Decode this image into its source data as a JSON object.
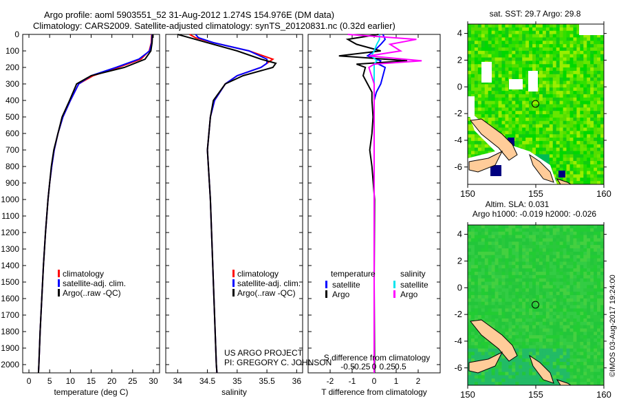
{
  "title_line1": "Argo profile: aoml 5903551_52 31-Aug-2012 1.274S 154.976E (DM data)",
  "title_line2": "Climatology: CARS2009. Satellite-adjusted climatology: synTS_20120831.nc (0.32d earlier)",
  "credit_line1": "US ARGO PROJECT",
  "credit_line2": "PI: GREGORY C. JOHNSON",
  "side_stamp": "©IMOS 03-Aug-2017 19:24:00",
  "colors": {
    "climatology": "#ff0000",
    "satellite": "#0000ff",
    "argo": "#000000",
    "s_satellite": "#00e5ee",
    "s_argo": "#ff00ff",
    "land": "#ffcc99"
  },
  "chart_data": [
    {
      "type": "line",
      "xlabel": "temperature (deg C)",
      "ylabel": "",
      "xlim": [
        -1.5,
        31.5
      ],
      "ylim": [
        2050,
        0
      ],
      "xticks": [
        "0",
        "5",
        "10",
        "15",
        "20",
        "25",
        "30"
      ],
      "yticks": [
        "0",
        "100",
        "200",
        "300",
        "400",
        "500",
        "600",
        "700",
        "800",
        "900",
        "1000",
        "1100",
        "1200",
        "1300",
        "1400",
        "1500",
        "1600",
        "1700",
        "1800",
        "1900",
        "2000"
      ],
      "legend": [
        "climatology",
        "satellite-adj. clim.",
        "Argo(..raw -QC)"
      ],
      "depth": [
        0,
        50,
        100,
        150,
        200,
        250,
        300,
        400,
        500,
        600,
        700,
        800,
        900,
        1000,
        1200,
        1400,
        1600,
        1800,
        2000,
        2050
      ],
      "series": [
        {
          "name": "climatology",
          "values": [
            29.6,
            29.5,
            29.0,
            27.0,
            21.5,
            15.5,
            12.0,
            10.0,
            8.2,
            7.0,
            6.1,
            5.5,
            5.0,
            4.6,
            4.0,
            3.5,
            3.1,
            2.7,
            2.4,
            2.3
          ]
        },
        {
          "name": "satellite-adj. clim.",
          "values": [
            29.7,
            29.6,
            29.1,
            26.5,
            21.0,
            15.0,
            12.0,
            10.0,
            8.2,
            7.0,
            6.1,
            5.5,
            5.0,
            4.6,
            4.0,
            3.5,
            3.1,
            2.7,
            2.4,
            2.3
          ]
        },
        {
          "name": "Argo(..raw -QC)",
          "values": [
            29.8,
            29.7,
            29.4,
            28.0,
            23.0,
            15.0,
            11.5,
            9.8,
            8.0,
            7.0,
            6.0,
            5.4,
            5.0,
            4.6,
            4.0,
            3.5,
            3.1,
            2.7,
            2.4,
            2.3
          ]
        }
      ]
    },
    {
      "type": "line",
      "xlabel": "salinity",
      "xlim": [
        33.8,
        36.1
      ],
      "ylim": [
        2050,
        0
      ],
      "xticks": [
        "34",
        "34.5",
        "35",
        "35.5",
        "36"
      ],
      "legend": [
        "climatology",
        "satellite-adj. clim.",
        "Argo(..raw -QC)"
      ],
      "depth": [
        0,
        20,
        50,
        100,
        150,
        175,
        200,
        250,
        300,
        400,
        500,
        700,
        1000,
        1500,
        2000,
        2050
      ],
      "series": [
        {
          "name": "climatology",
          "values": [
            34.2,
            34.3,
            34.6,
            35.2,
            35.6,
            35.5,
            35.4,
            35.0,
            34.8,
            34.62,
            34.55,
            34.5,
            34.55,
            34.6,
            34.65,
            34.66
          ]
        },
        {
          "name": "satellite-adj. clim.",
          "values": [
            34.3,
            34.35,
            34.6,
            35.2,
            35.5,
            35.5,
            35.4,
            35.0,
            34.8,
            34.62,
            34.55,
            34.5,
            34.55,
            34.6,
            34.65,
            34.66
          ]
        },
        {
          "name": "Argo(..raw -QC)",
          "values": [
            34.0,
            34.2,
            34.5,
            35.0,
            35.4,
            35.65,
            35.6,
            35.1,
            34.8,
            34.6,
            34.55,
            34.5,
            34.55,
            34.6,
            34.65,
            34.66
          ]
        }
      ]
    },
    {
      "type": "line",
      "xlabel": "T difference from climatology",
      "xlabel2": "S difference from climatology",
      "xlim": [
        -3,
        3
      ],
      "xlim2": [
        -1.25,
        1.25
      ],
      "ylim": [
        2050,
        0
      ],
      "xticks": [
        "-2",
        "-1",
        "0",
        "1",
        "2"
      ],
      "xticks2": [
        "-0.5",
        "-0.25",
        "0",
        "0.25",
        "0.5"
      ],
      "legend_titles": [
        "temperature",
        "salinity"
      ],
      "legend": [
        "satellite",
        "Argo",
        "satellite",
        "Argo"
      ],
      "depth": [
        0,
        30,
        60,
        100,
        130,
        160,
        180,
        200,
        250,
        300,
        350,
        400,
        500,
        600,
        700,
        800,
        1000,
        1500,
        2000,
        2050
      ],
      "series": [
        {
          "name": "T satellite",
          "values": [
            0.4,
            0.5,
            0.3,
            0.0,
            -0.3,
            0.3,
            0.2,
            0.5,
            0.4,
            0.3,
            0.1,
            0.0,
            0.0,
            0.0,
            0.0,
            0.0,
            0.0,
            0.0,
            0.0,
            0.0
          ]
        },
        {
          "name": "T Argo",
          "values": [
            0.2,
            -1.2,
            -0.8,
            0.3,
            -1.6,
            1.5,
            -0.8,
            -0.4,
            -0.5,
            -0.3,
            -0.1,
            -0.1,
            -0.05,
            -0.1,
            -0.2,
            -0.1,
            0.02,
            0.0,
            0.02,
            0.02
          ]
        },
        {
          "name": "S satellite",
          "values": [
            0.1,
            0.1,
            0.05,
            0.0,
            -0.05,
            0.05,
            0.0,
            0.0,
            0.0,
            0.0,
            0.0,
            0.0,
            0.0,
            0.0,
            0.0,
            0.0,
            0.0,
            0.0,
            0.0,
            0.0
          ]
        },
        {
          "name": "S Argo",
          "values": [
            -0.5,
            0.8,
            0.3,
            0.5,
            -0.1,
            0.9,
            0.0,
            -0.1,
            -0.05,
            0.0,
            0.0,
            0.0,
            0.0,
            0.0,
            0.0,
            0.0,
            0.0,
            0.0,
            0.0,
            0.0
          ]
        }
      ]
    },
    {
      "type": "heatmap",
      "title": "sat. SST: 29.7 Argo: 29.8",
      "xticks": [
        "150",
        "155",
        "160"
      ],
      "yticks": [
        "4",
        "2",
        "0",
        "-2",
        "-4",
        "-6"
      ],
      "xlim": [
        150,
        160
      ],
      "ylim": [
        -7.3,
        4.7
      ],
      "argo_position": [
        154.976,
        -1.274
      ]
    },
    {
      "type": "heatmap",
      "title": "Altim. SLA: 0.031",
      "subtitle": "Argo h1000: -0.019 h2000: -0.026",
      "xticks": [
        "150",
        "155",
        "160"
      ],
      "yticks": [
        "4",
        "2",
        "0",
        "-2",
        "-4",
        "-6"
      ],
      "xlim": [
        150,
        160
      ],
      "ylim": [
        -7.3,
        4.7
      ],
      "argo_position": [
        154.976,
        -1.274
      ]
    }
  ]
}
